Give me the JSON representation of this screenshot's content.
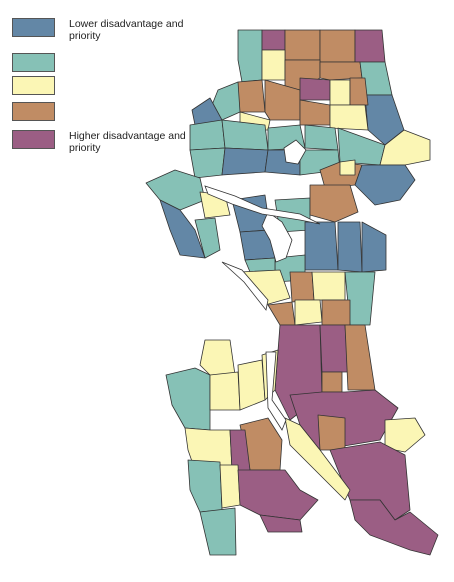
{
  "legend": {
    "items": [
      {
        "label": "Lower disadvantage and priority",
        "color": "#6387a6"
      },
      {
        "label": "",
        "color": "#86c1b6"
      },
      {
        "label": "",
        "color": "#fbf6b5"
      },
      {
        "label": "",
        "color": "#c08c64"
      },
      {
        "label": "Higher disadvantage and priority",
        "color": "#9b5e84"
      }
    ]
  },
  "colors": {
    "lowest": "#6387a6",
    "low": "#86c1b6",
    "middle": "#fbf6b5",
    "high": "#c08c64",
    "highest": "#9b5e84",
    "water": "#ffffff",
    "boundary": "#333333"
  }
}
